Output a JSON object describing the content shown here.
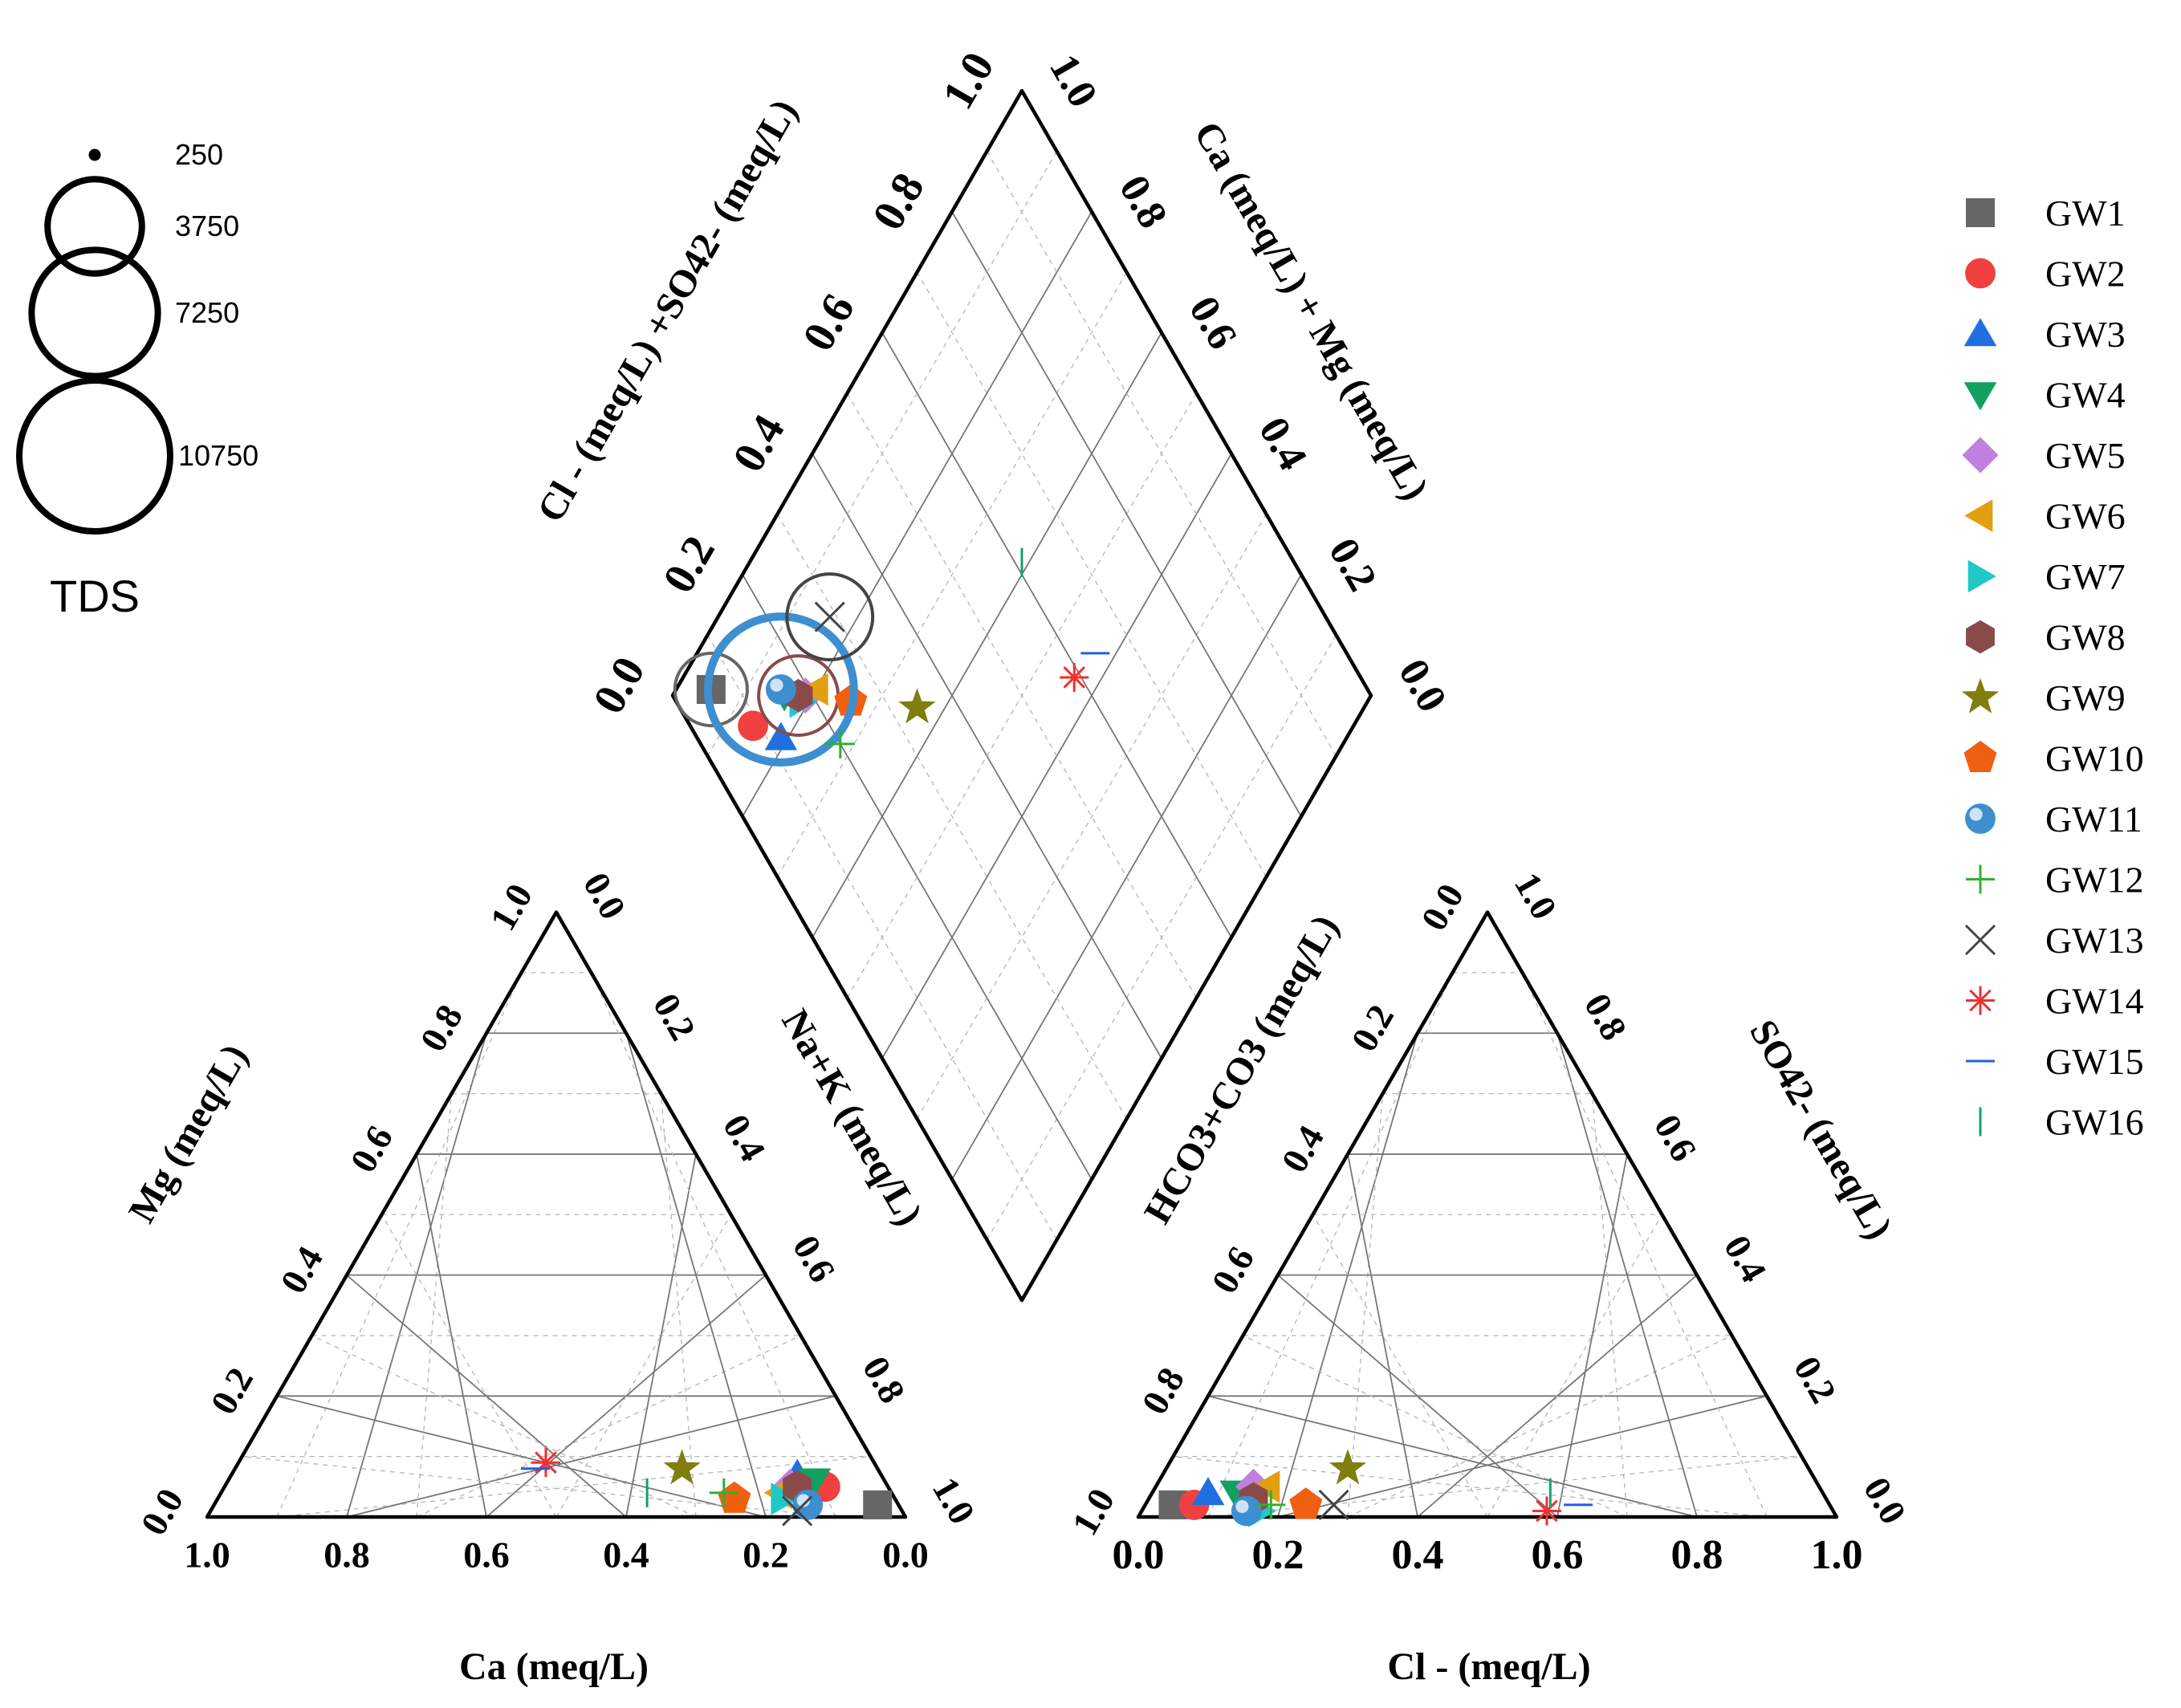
{
  "chart_data": {
    "type": "piper",
    "title": "",
    "cation_triangle": {
      "bottom_axis_label": "Ca (meq/L)",
      "left_axis_label": "Mg (meq/L)",
      "right_axis_label": "Na+K (meq/L)",
      "bottom_ticks": [
        "1.0",
        "0.8",
        "0.6",
        "0.4",
        "0.2",
        "0.0"
      ],
      "left_ticks": [
        "0.0",
        "0.2",
        "0.4",
        "0.6",
        "0.8",
        "1.0"
      ],
      "right_ticks": [
        "0.0",
        "0.2",
        "0.4",
        "0.6",
        "0.8",
        "1.0"
      ]
    },
    "anion_triangle": {
      "bottom_axis_label": "Cl - (meq/L)",
      "left_axis_label": "HCO3+CO3 (meq/L)",
      "right_axis_label": "SO42- (meq/L)",
      "bottom_ticks": [
        "0.0",
        "0.2",
        "0.4",
        "0.6",
        "0.8",
        "1.0"
      ],
      "left_ticks": [
        "1.0",
        "0.8",
        "0.6",
        "0.4",
        "0.2",
        "0.0"
      ],
      "right_ticks": [
        "1.0",
        "0.8",
        "0.6",
        "0.4",
        "0.2",
        "0.0"
      ]
    },
    "diamond": {
      "left_axis_label": "Cl - (meq/L) +SO42- (meq/L)",
      "right_axis_label": "Ca (meq/L) + Mg (meq/L)",
      "left_ticks": [
        "0.0",
        "0.2",
        "0.4",
        "0.6",
        "0.8",
        "1.0"
      ],
      "right_ticks": [
        "1.0",
        "0.8",
        "0.6",
        "0.4",
        "0.2",
        "0.0"
      ]
    },
    "tds_legend": {
      "title": "TDS",
      "values": [
        250,
        3750,
        7250,
        10750
      ],
      "labels": [
        "250",
        "3750",
        "7250",
        "10750"
      ]
    },
    "series": [
      {
        "name": "GW1",
        "marker": "square",
        "color": "#666666",
        "ca": 0.03,
        "mg": 0.02,
        "cl": 0.04,
        "so4": 0.02,
        "tds": 2000
      },
      {
        "name": "GW2",
        "marker": "circle",
        "color": "#f04040",
        "ca": 0.09,
        "mg": 0.05,
        "cl": 0.07,
        "so4": 0.02
      },
      {
        "name": "GW3",
        "marker": "triangle-up",
        "color": "#1f6fe0",
        "ca": 0.12,
        "mg": 0.07,
        "cl": 0.08,
        "so4": 0.04
      },
      {
        "name": "GW4",
        "marker": "triangle-down",
        "color": "#10a060",
        "ca": 0.1,
        "mg": 0.06,
        "cl": 0.12,
        "so4": 0.04
      },
      {
        "name": "GW5",
        "marker": "diamond",
        "color": "#c080e0",
        "ca": 0.14,
        "mg": 0.05,
        "cl": 0.14,
        "so4": 0.05
      },
      {
        "name": "GW6",
        "marker": "triangle-left",
        "color": "#e0a010",
        "ca": 0.16,
        "mg": 0.04,
        "cl": 0.16,
        "so4": 0.05
      },
      {
        "name": "GW7",
        "marker": "triangle-right",
        "color": "#20c8c8",
        "ca": 0.16,
        "mg": 0.03,
        "cl": 0.17,
        "so4": 0.01
      },
      {
        "name": "GW8",
        "marker": "hexagon",
        "color": "#8b4a4a",
        "ca": 0.13,
        "mg": 0.05,
        "cl": 0.15,
        "so4": 0.03,
        "tds": 2500
      },
      {
        "name": "GW9",
        "marker": "star",
        "color": "#7f7f10",
        "ca": 0.28,
        "mg": 0.08,
        "cl": 0.26,
        "so4": 0.08
      },
      {
        "name": "GW10",
        "marker": "pentagon",
        "color": "#f06010",
        "ca": 0.23,
        "mg": 0.03,
        "cl": 0.23,
        "so4": 0.02
      },
      {
        "name": "GW11",
        "marker": "sphere",
        "color": "#3d8fd0",
        "ca": 0.13,
        "mg": 0.02,
        "cl": 0.15,
        "so4": 0.01,
        "tds": 10000
      },
      {
        "name": "GW12",
        "marker": "plus",
        "color": "#30b030",
        "ca": 0.24,
        "mg": 0.04,
        "cl": 0.18,
        "so4": 0.02
      },
      {
        "name": "GW13",
        "marker": "x",
        "color": "#444444",
        "ca": 0.15,
        "mg": 0.01,
        "cl": 0.27,
        "so4": 0.02,
        "tds": 3000
      },
      {
        "name": "GW14",
        "marker": "asterisk",
        "color": "#f03030",
        "ca": 0.47,
        "mg": 0.09,
        "cl": 0.58,
        "so4": 0.01
      },
      {
        "name": "GW15",
        "marker": "hline",
        "color": "#2060e0",
        "ca": 0.49,
        "mg": 0.08,
        "cl": 0.62,
        "so4": 0.02
      },
      {
        "name": "GW16",
        "marker": "vline",
        "color": "#10a070",
        "ca": 0.35,
        "mg": 0.04,
        "cl": 0.57,
        "so4": 0.04
      }
    ]
  }
}
